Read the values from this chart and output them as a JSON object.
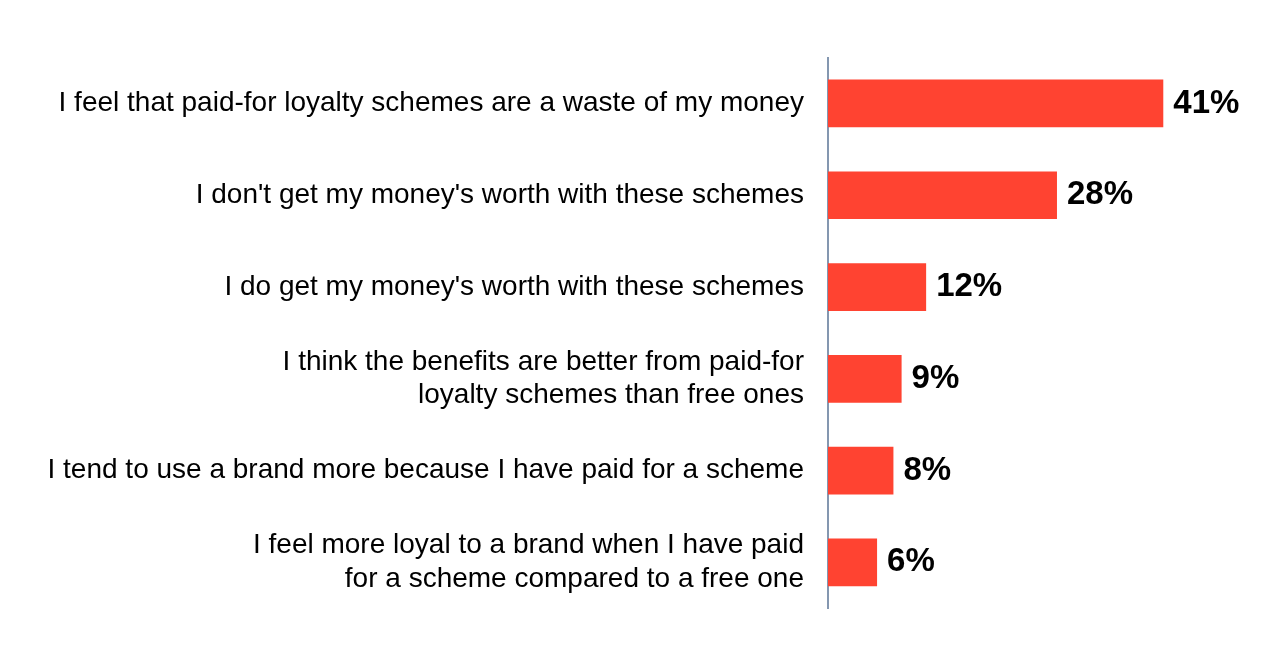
{
  "chart_data": {
    "type": "bar",
    "orientation": "horizontal",
    "categories": [
      "I feel that paid-for loyalty schemes are a waste of my money",
      "I don't get my money's worth with these schemes",
      "I do get my money's worth with these schemes",
      "I think the benefits are better from paid-for loyalty schemes than free ones",
      "I tend to use a brand more because I have paid for a scheme",
      "I feel more loyal to a brand when I have paid for a scheme compared to a free one"
    ],
    "values": [
      41,
      28,
      12,
      9,
      8,
      6
    ],
    "value_labels": [
      "41%",
      "28%",
      "12%",
      "9%",
      "8%",
      "6%"
    ],
    "color": "#ff4331",
    "tick_labels": "y"
  }
}
